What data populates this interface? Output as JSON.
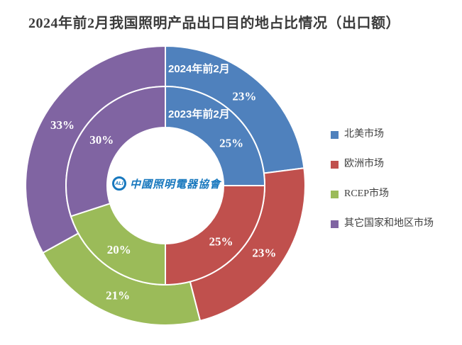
{
  "title": "2024年前2月我国照明产品出口目的地占比情况（出口额）",
  "chart_data": {
    "type": "pie",
    "variant": "nested-double-donut",
    "title": "2024年前2月我国照明产品出口目的地占比情况（出口额）",
    "categories": [
      "北美市场",
      "欧洲市场",
      "RCEP市场",
      "其它国家和地区市场"
    ],
    "colors": [
      "#4F81BD",
      "#C0504D",
      "#9BBB59",
      "#8064A2"
    ],
    "series": [
      {
        "name": "2024年前2月",
        "ring": "outer",
        "values": [
          23,
          23,
          21,
          33
        ],
        "labels": [
          "23%",
          "23%",
          "21%",
          "33%"
        ]
      },
      {
        "name": "2023年前2月",
        "ring": "inner",
        "values": [
          25,
          25,
          20,
          30
        ],
        "labels": [
          "25%",
          "25%",
          "20%",
          "30%"
        ]
      }
    ],
    "start_angle_deg": 0,
    "direction": "clockwise",
    "units": "%",
    "legend_position": "right"
  },
  "legend": {
    "items": [
      {
        "label": "北美市场",
        "color": "#4F81BD"
      },
      {
        "label": "欧洲市场",
        "color": "#C0504D"
      },
      {
        "label": "RCEP市场",
        "color": "#9BBB59"
      },
      {
        "label": "其它国家和地区市场",
        "color": "#8064A2"
      }
    ]
  },
  "logo": {
    "abbr": "ALI",
    "text": "中國照明電器協會",
    "color": "#1878BE"
  }
}
